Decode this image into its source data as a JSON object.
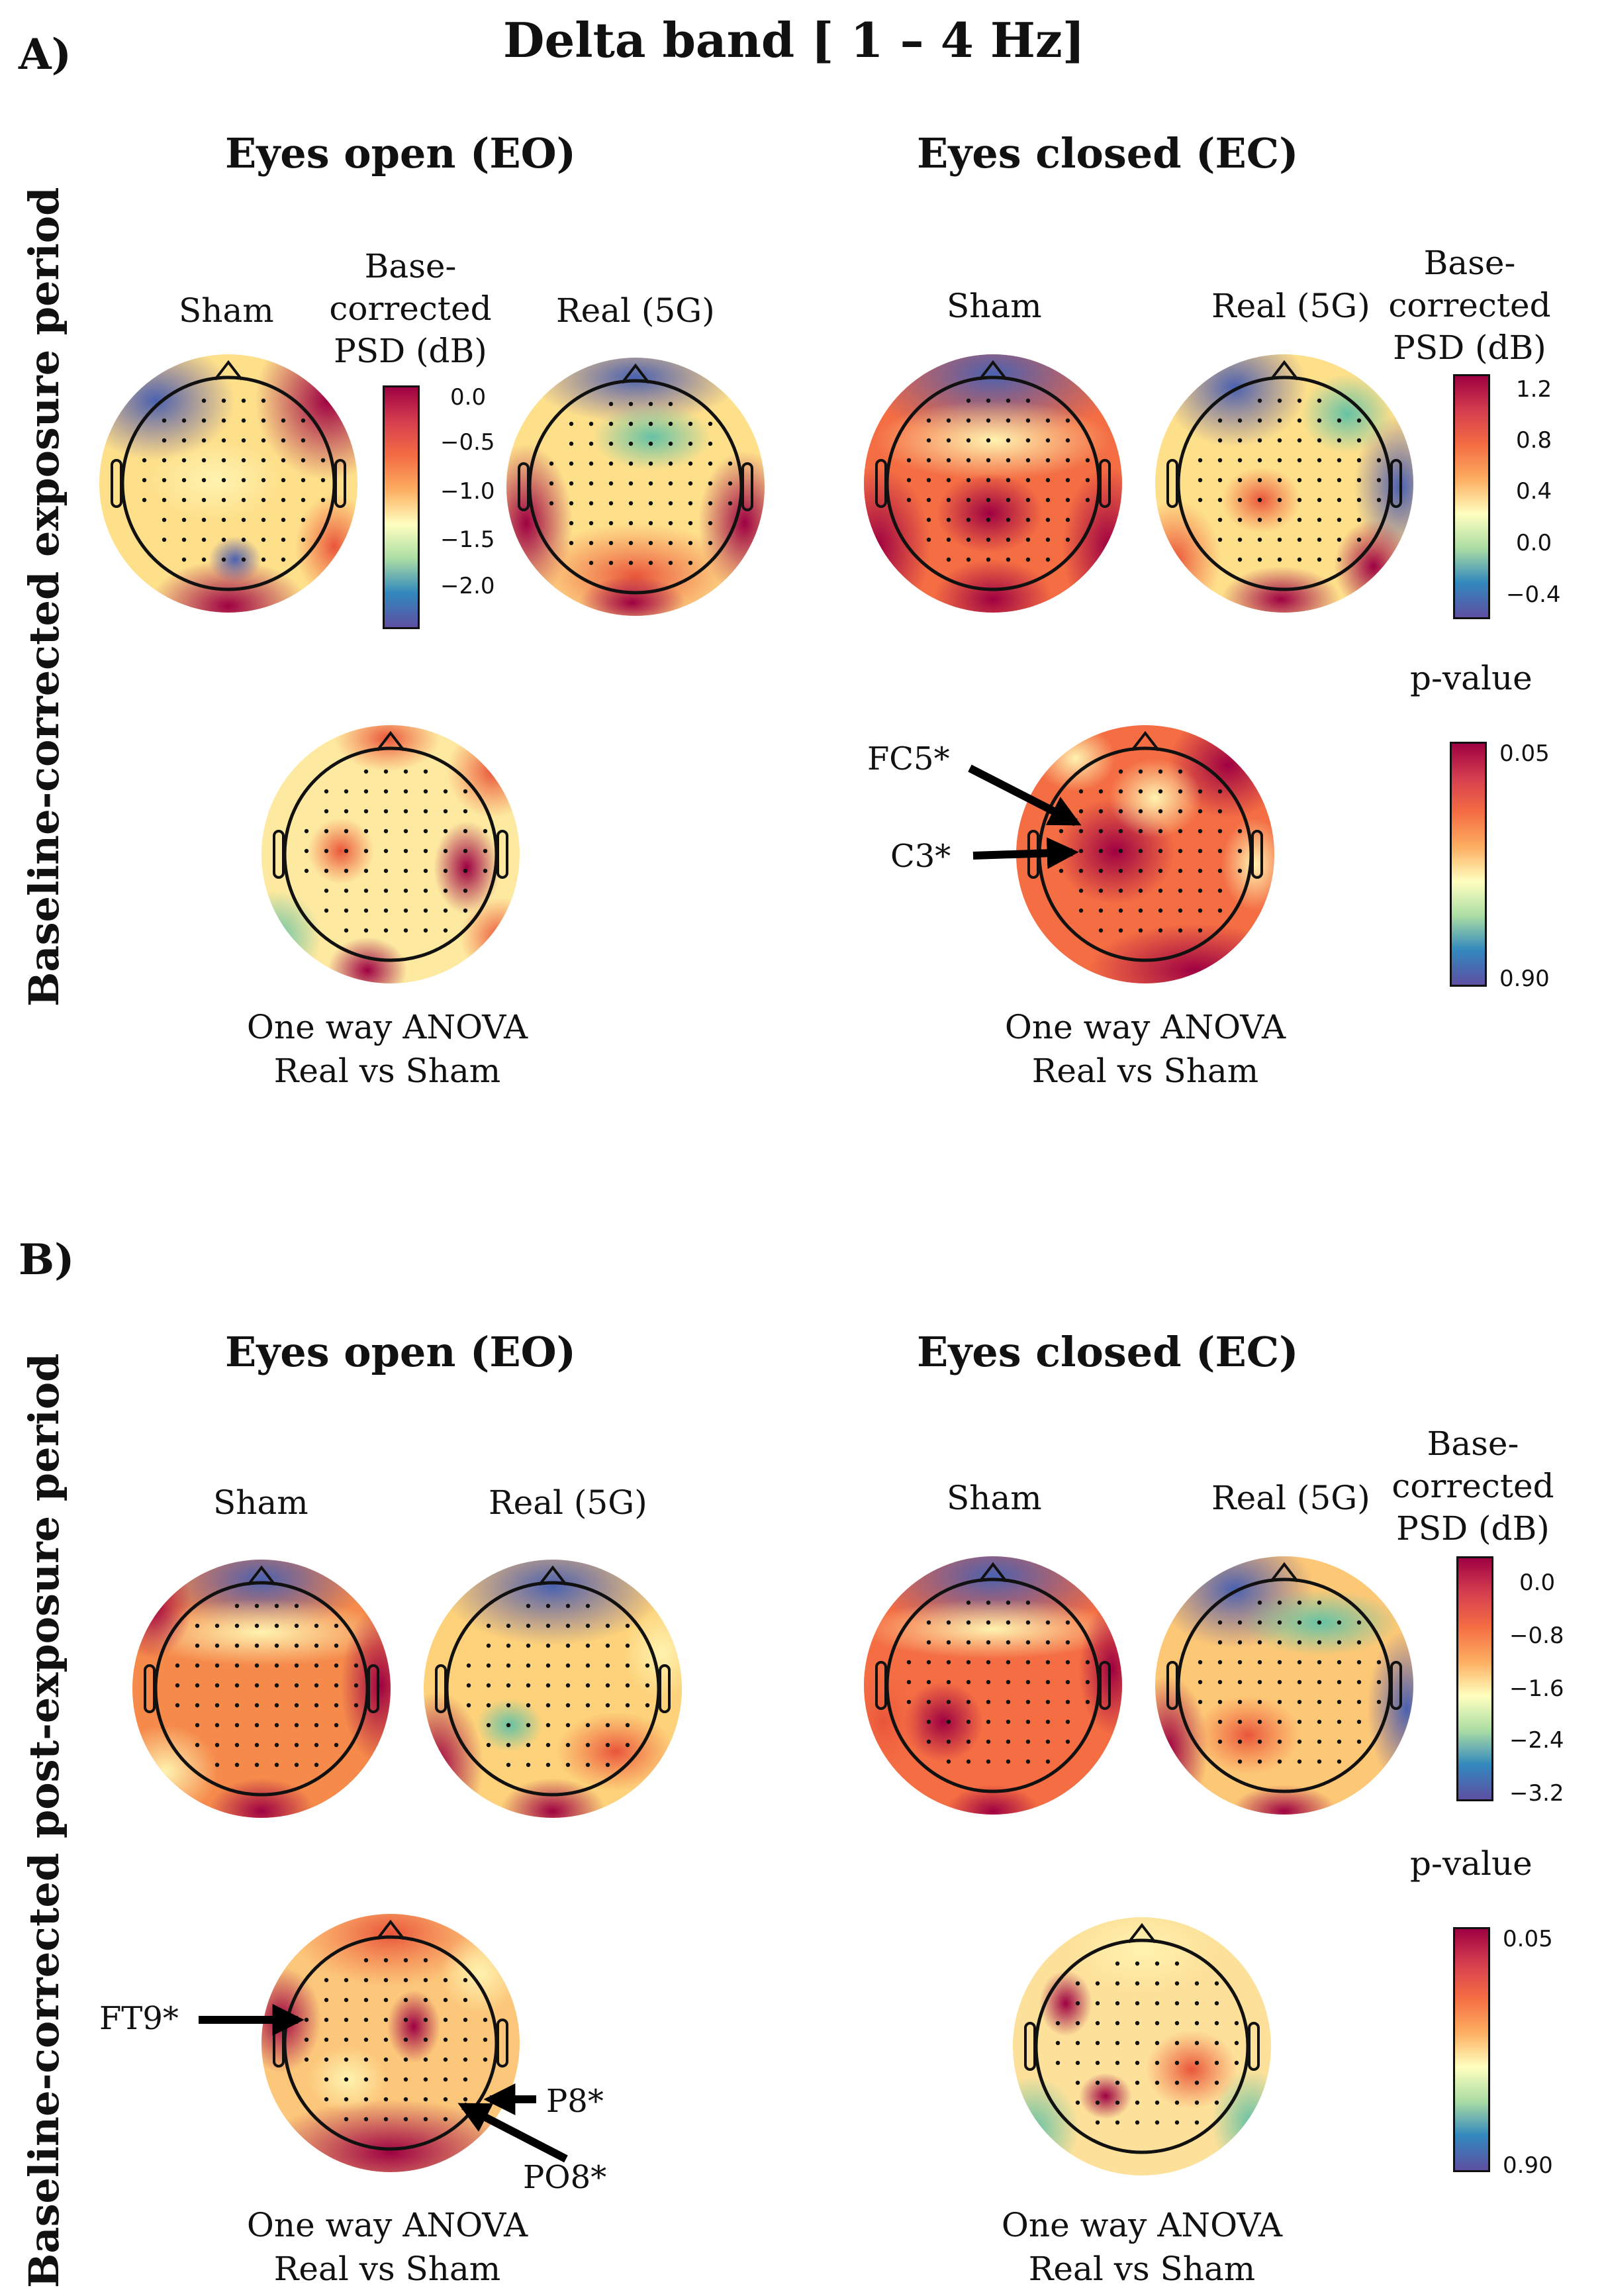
{
  "figure_title": "Delta band [ 1 – 4 Hz]",
  "panels": [
    {
      "label": "A)",
      "side_label": "Baseline-corrected exposure period",
      "eo": {
        "title": "Eyes open (EO)",
        "sham": "Sham",
        "real": "Real (5G)",
        "cbar_title": "Base-corrected PSD (dB)",
        "ticks": [
          "0.0",
          "−0.5",
          "−1.0",
          "−1.5",
          "−2.0"
        ],
        "anova_line1": "One way ANOVA",
        "anova_line2": "Real vs Sham",
        "electrodes": []
      },
      "ec": {
        "title": "Eyes closed (EC)",
        "sham": "Sham",
        "real": "Real (5G)",
        "cbar_title": "Base-corrected PSD (dB)",
        "ticks": [
          "1.2",
          "0.8",
          "0.4",
          "0.0",
          "−0.4"
        ],
        "pvalue_title": "p-value",
        "pvalue_ticks": [
          "0.05",
          "0.90"
        ],
        "anova_line1": "One way ANOVA",
        "anova_line2": "Real vs Sham",
        "electrodes": [
          "FC5*",
          "C3*"
        ]
      }
    },
    {
      "label": "B)",
      "side_label": "Baseline-corrected post-exposure period",
      "eo": {
        "title": "Eyes open (EO)",
        "sham": "Sham",
        "real": "Real (5G)",
        "anova_line1": "One way ANOVA",
        "anova_line2": "Real vs Sham",
        "electrodes": [
          "FT9*",
          "P8*",
          "PO8*"
        ]
      },
      "ec": {
        "title": "Eyes closed (EC)",
        "sham": "Sham",
        "real": "Real (5G)",
        "cbar_title": "Base-corrected PSD (dB)",
        "ticks": [
          "0.0",
          "−0.8",
          "−1.6",
          "−2.4",
          "−3.2"
        ],
        "pvalue_title": "p-value",
        "pvalue_ticks": [
          "0.05",
          "0.90"
        ],
        "anova_line1": "One way ANOVA",
        "anova_line2": "Real vs Sham",
        "electrodes": []
      }
    }
  ],
  "colors": {
    "high": "#9e0142",
    "mid_high": "#f46d43",
    "mid": "#ffffbf",
    "mid_low": "#66c2a5",
    "low": "#5e4fa2"
  }
}
